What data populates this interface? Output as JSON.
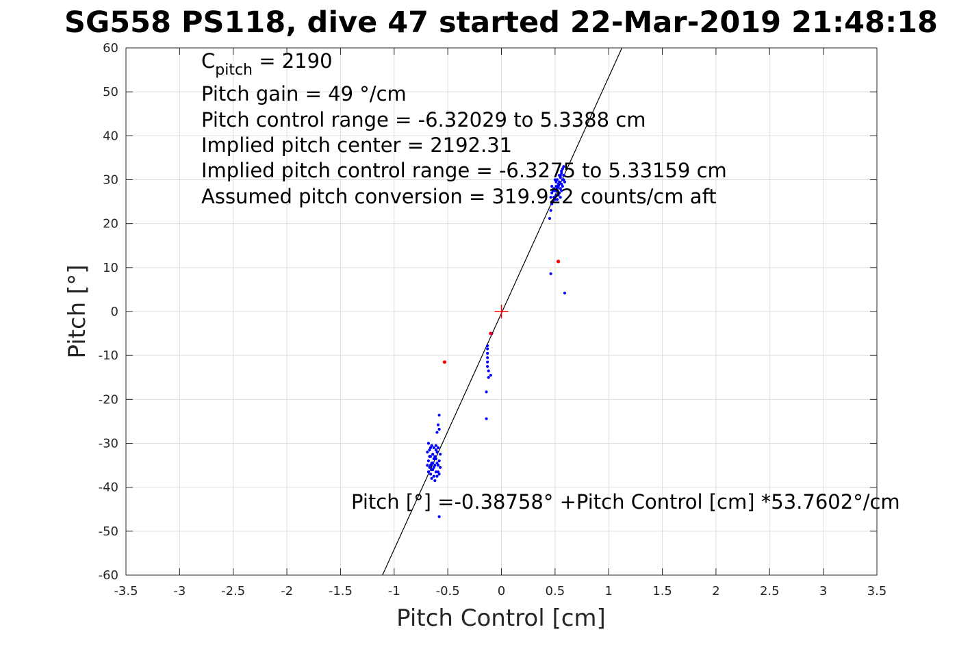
{
  "chart_data": {
    "type": "scatter",
    "title": "SG558 PS118, dive 47 started 22-Mar-2019 21:48:18",
    "xlabel": "Pitch Control [cm]",
    "ylabel": "Pitch [°]",
    "xlim": [
      -3.5,
      3.5
    ],
    "ylim": [
      -60,
      60
    ],
    "xticks": [
      -3.5,
      -3,
      -2.5,
      -2,
      -1.5,
      -1,
      -0.5,
      0,
      0.5,
      1,
      1.5,
      2,
      2.5,
      3,
      3.5
    ],
    "xtick_labels": [
      "-3.5",
      "-3",
      "-2.5",
      "-2",
      "-1.5",
      "-1",
      "-0.5",
      "0",
      "0.5",
      "1",
      "1.5",
      "2",
      "2.5",
      "3",
      "3.5"
    ],
    "yticks": [
      60,
      50,
      40,
      30,
      20,
      10,
      0,
      -10,
      -20,
      -30,
      -40,
      -50,
      -60
    ],
    "ytick_labels": [
      "60",
      "50",
      "40",
      "30",
      "20",
      "10",
      "0",
      "-10",
      "-20",
      "-30",
      "-40",
      "-50",
      "-60"
    ],
    "grid": true,
    "fit_line": {
      "intercept": -0.38758,
      "slope": 53.7602,
      "color": "#000000"
    },
    "center_marker": {
      "x": 0,
      "y": 0,
      "color": "#ff0000"
    },
    "annotations": {
      "cpitch_main": "C",
      "cpitch_sub": "pitch",
      "cpitch_value": " = 2190",
      "lines": [
        "Pitch gain = 49 °/cm",
        "Pitch control range = -6.32029 to 5.3388 cm",
        "Implied pitch center = 2192.31",
        "Implied pitch control range = -6.3275 to 5.33159 cm",
        "Assumed pitch conversion = 319.922 counts/cm aft"
      ],
      "fit_equation": "Pitch [°] =-0.38758° +Pitch Control [cm] *53.7602°/cm"
    },
    "series": [
      {
        "color": "#0000ff",
        "points": [
          [
            0.46,
            8.6
          ],
          [
            0.59,
            4.2
          ],
          [
            -0.13,
            -7.8
          ],
          [
            -0.13,
            -8.5
          ],
          [
            -0.13,
            -9.5
          ],
          [
            -0.13,
            -10.5
          ],
          [
            -0.13,
            -11.5
          ],
          [
            -0.13,
            -12.5
          ],
          [
            -0.12,
            -13.5
          ],
          [
            -0.12,
            -15.0
          ],
          [
            -0.1,
            -14.5
          ],
          [
            -0.14,
            -18.3
          ],
          [
            -0.14,
            -24.4
          ],
          [
            -0.09,
            -5.0
          ],
          [
            -0.58,
            -46.7
          ],
          [
            -0.58,
            -23.6
          ],
          [
            -0.59,
            -25.8
          ],
          [
            -0.58,
            -26.8
          ],
          [
            -0.6,
            -27.5
          ],
          [
            0.45,
            21.2
          ],
          [
            0.46,
            23.0
          ],
          [
            0.47,
            24.5
          ],
          [
            0.46,
            26.0
          ],
          [
            0.48,
            27.5
          ],
          [
            0.47,
            28.5
          ],
          [
            0.5,
            25.5
          ],
          [
            0.51,
            26.5
          ],
          [
            0.52,
            27.5
          ],
          [
            0.53,
            28.5
          ],
          [
            0.54,
            29.5
          ],
          [
            0.55,
            30.5
          ],
          [
            0.56,
            31.5
          ],
          [
            0.57,
            32.5
          ],
          [
            0.58,
            33.0
          ],
          [
            0.52,
            28.0
          ],
          [
            0.53,
            29.0
          ],
          [
            0.54,
            27.0
          ],
          [
            0.55,
            28.0
          ],
          [
            0.56,
            29.0
          ],
          [
            0.57,
            30.0
          ],
          [
            0.58,
            31.0
          ],
          [
            0.49,
            26.0
          ],
          [
            0.5,
            27.5
          ],
          [
            0.51,
            28.5
          ],
          [
            0.52,
            30.0
          ],
          [
            0.55,
            31.0
          ],
          [
            0.56,
            32.0
          ],
          [
            0.59,
            29.5
          ],
          [
            0.48,
            25.0
          ],
          [
            0.53,
            26.5
          ],
          [
            0.57,
            28.5
          ],
          [
            0.58,
            30.0
          ],
          [
            0.54,
            31.0
          ],
          [
            0.51,
            29.5
          ],
          [
            0.47,
            27.0
          ],
          [
            0.5,
            30.0
          ],
          [
            0.55,
            26.0
          ],
          [
            0.56,
            27.5
          ],
          [
            0.49,
            28.0
          ],
          [
            0.52,
            25.5
          ],
          [
            -0.68,
            -30.0
          ],
          [
            -0.67,
            -31.5
          ],
          [
            -0.66,
            -33.0
          ],
          [
            -0.65,
            -34.5
          ],
          [
            -0.64,
            -36.0
          ],
          [
            -0.63,
            -37.5
          ],
          [
            -0.62,
            -35.0
          ],
          [
            -0.61,
            -33.5
          ],
          [
            -0.6,
            -32.0
          ],
          [
            -0.59,
            -31.0
          ],
          [
            -0.68,
            -34.0
          ],
          [
            -0.67,
            -35.5
          ],
          [
            -0.66,
            -37.0
          ],
          [
            -0.65,
            -38.0
          ],
          [
            -0.64,
            -32.5
          ],
          [
            -0.63,
            -31.0
          ],
          [
            -0.62,
            -33.0
          ],
          [
            -0.61,
            -36.5
          ],
          [
            -0.6,
            -37.5
          ],
          [
            -0.59,
            -35.0
          ],
          [
            -0.58,
            -34.0
          ],
          [
            -0.68,
            -36.5
          ],
          [
            -0.67,
            -33.0
          ],
          [
            -0.66,
            -31.0
          ],
          [
            -0.65,
            -30.5
          ],
          [
            -0.64,
            -34.5
          ],
          [
            -0.63,
            -35.5
          ],
          [
            -0.62,
            -38.5
          ],
          [
            -0.61,
            -31.5
          ],
          [
            -0.6,
            -34.5
          ],
          [
            -0.59,
            -36.5
          ],
          [
            -0.58,
            -37.0
          ],
          [
            -0.69,
            -32.0
          ],
          [
            -0.69,
            -35.0
          ],
          [
            -0.57,
            -35.5
          ],
          [
            -0.57,
            -32.5
          ],
          [
            -0.65,
            -36.0
          ],
          [
            -0.63,
            -33.5
          ],
          [
            -0.61,
            -30.5
          ],
          [
            -0.66,
            -35.0
          ]
        ]
      },
      {
        "color": "#ff0000",
        "points": [
          [
            -0.53,
            -11.5
          ],
          [
            0.53,
            11.4
          ],
          [
            -0.1,
            -5.0
          ]
        ]
      }
    ]
  }
}
